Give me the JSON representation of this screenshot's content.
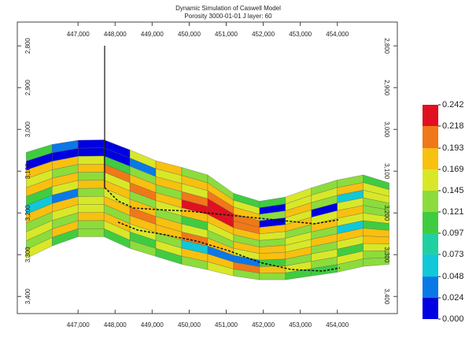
{
  "chart_data": {
    "type": "cross-section",
    "title": "Dynamic Simulation of Caswell Model",
    "subtitle": "Porosity 3000-01-01    J layer: 60",
    "xlim": [
      445360,
      455620
    ],
    "ylim": [
      3441,
      2743
    ],
    "xticks": [
      {
        "value": 447000,
        "label": "447,000"
      },
      {
        "value": 448000,
        "label": "448,000"
      },
      {
        "value": 449000,
        "label": "449,000"
      },
      {
        "value": 450000,
        "label": "450,000"
      },
      {
        "value": 451000,
        "label": "451,000"
      },
      {
        "value": 452000,
        "label": "452,000"
      },
      {
        "value": 453000,
        "label": "453,000"
      },
      {
        "value": 454000,
        "label": "454,000"
      }
    ],
    "yticks": [
      {
        "value": 2800,
        "label": "2,800"
      },
      {
        "value": 2900,
        "label": "2,900"
      },
      {
        "value": 3000,
        "label": "3,000"
      },
      {
        "value": 3100,
        "label": "3,100"
      },
      {
        "value": 3200,
        "label": "3,200"
      },
      {
        "value": 3300,
        "label": "3,300"
      },
      {
        "value": 3400,
        "label": "3,400"
      }
    ],
    "column_edges": [
      445600,
      446300,
      447000,
      447700,
      448400,
      449100,
      449800,
      450500,
      451200,
      451900,
      452600,
      453300,
      454000,
      454700,
      455400
    ],
    "top_depth": [
      3055,
      3036,
      3026,
      3025,
      3049,
      3075,
      3091,
      3109,
      3153,
      3172,
      3162,
      3140,
      3121,
      3109,
      3128
    ],
    "bottom_depth": [
      3309,
      3279,
      3257,
      3257,
      3285,
      3304,
      3323,
      3336,
      3351,
      3360,
      3360,
      3351,
      3342,
      3328,
      3323
    ],
    "layers": [
      [
        0.12,
        0.04,
        0.01,
        0.02,
        0.15,
        0.17,
        0.13,
        0.14,
        0.1,
        0.12,
        0.15,
        0.13,
        0.14,
        0.12
      ],
      [
        0.02,
        0.01,
        0.0,
        0.01,
        0.03,
        0.16,
        0.19,
        0.17,
        0.15,
        0.01,
        0.16,
        0.15,
        0.18,
        0.16
      ],
      [
        0.17,
        0.19,
        0.16,
        0.12,
        0.14,
        0.18,
        0.16,
        0.2,
        0.19,
        0.14,
        0.17,
        0.13,
        0.06,
        0.15
      ],
      [
        0.15,
        0.14,
        0.18,
        0.2,
        0.17,
        0.13,
        0.2,
        0.22,
        0.21,
        0.02,
        0.15,
        0.01,
        0.16,
        0.14
      ],
      [
        0.19,
        0.17,
        0.13,
        0.16,
        0.21,
        0.19,
        0.22,
        0.23,
        0.2,
        0.17,
        0.19,
        0.16,
        0.18,
        0.13
      ],
      [
        0.12,
        0.16,
        0.19,
        0.17,
        0.14,
        0.16,
        0.18,
        0.19,
        0.17,
        0.15,
        0.13,
        0.17,
        0.15,
        0.16
      ],
      [
        0.05,
        0.03,
        0.13,
        0.15,
        0.17,
        0.14,
        0.12,
        0.16,
        0.14,
        0.13,
        0.16,
        0.14,
        0.05,
        0.12
      ],
      [
        0.17,
        0.18,
        0.16,
        0.19,
        0.2,
        0.17,
        0.15,
        0.14,
        0.17,
        0.18,
        0.15,
        0.17,
        0.19,
        0.17
      ],
      [
        0.14,
        0.16,
        0.15,
        0.13,
        0.17,
        0.19,
        0.2,
        0.18,
        0.16,
        0.19,
        0.17,
        0.14,
        0.16,
        0.18
      ],
      [
        0.16,
        0.13,
        0.17,
        0.18,
        0.15,
        0.13,
        0.06,
        0.04,
        0.03,
        0.11,
        0.14,
        0.16,
        0.12,
        0.15
      ],
      [
        0.13,
        0.17,
        0.14,
        0.16,
        0.12,
        0.15,
        0.17,
        0.19,
        0.21,
        0.18,
        0.16,
        0.13,
        0.15,
        0.14
      ],
      [
        0.15,
        0.12,
        0.13,
        0.11,
        0.14,
        0.12,
        0.13,
        0.15,
        0.14,
        0.13,
        0.12,
        0.11,
        0.14,
        0.13
      ]
    ],
    "colorbar_ticks": [
      {
        "value": 0,
        "label": "0.000"
      },
      0.024,
      0.048,
      0.073,
      0.097,
      0.121,
      0.145,
      0.169,
      0.193,
      0.218,
      0.242
    ],
    "colors": [
      "#0000e0",
      "#0a78e6",
      "#10c8d8",
      "#20d0a0",
      "#40cc40",
      "#8cdc3c",
      "#d8e828",
      "#f8c010",
      "#f07818",
      "#e01020"
    ]
  }
}
